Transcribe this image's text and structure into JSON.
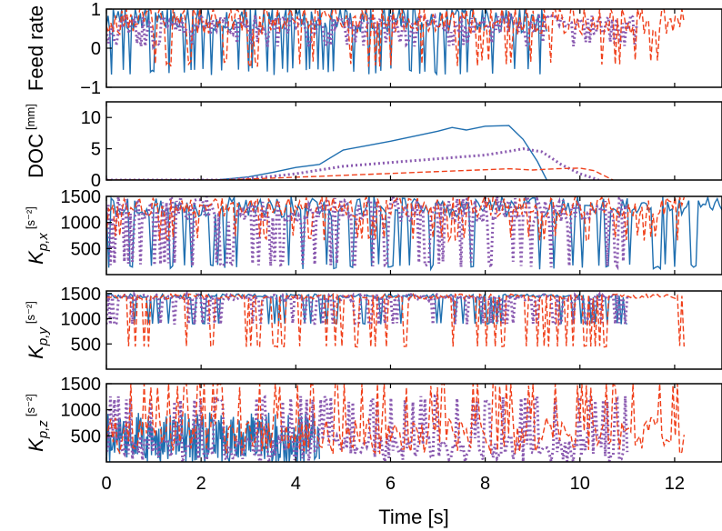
{
  "chart_data": {
    "type": "line",
    "layout": "5 vertically stacked panels sharing the x axis",
    "xlabel": "Time [s]",
    "xlim": [
      0,
      13
    ],
    "xticks": [
      0,
      2,
      4,
      6,
      8,
      10,
      12
    ],
    "grid": false,
    "legend": "none",
    "series_styles": [
      {
        "color": "#1f6fb0",
        "dash": "solid"
      },
      {
        "color": "#8a5ab0",
        "dash": "dotted"
      },
      {
        "color": "#f0401b",
        "dash": "dashed"
      }
    ],
    "panels": [
      {
        "id": "feed",
        "ylabel": "Feed rate",
        "ylabel_unit": "",
        "ylim": [
          -1,
          1
        ],
        "yticks": [
          -1,
          0,
          1
        ],
        "series": [
          {
            "style": 0,
            "x_range": [
              0,
              9.3
            ],
            "kind": "noisy",
            "base": 0.75,
            "spread": 0.35,
            "spike_to": -0.6
          },
          {
            "style": 1,
            "x_range": [
              0,
              11.2
            ],
            "kind": "noisy",
            "base": 0.6,
            "spread": 0.25,
            "spike_to": 0.1
          },
          {
            "style": 2,
            "x_range": [
              0,
              12.2
            ],
            "kind": "noisy",
            "base": 0.75,
            "spread": 0.4,
            "spike_to": -0.4
          }
        ]
      },
      {
        "id": "doc",
        "ylabel": "DOC",
        "ylabel_unit": "[mm]",
        "ylim": [
          0,
          12.5
        ],
        "yticks": [
          0,
          5,
          10
        ],
        "series": [
          {
            "style": 0,
            "x": [
              0,
              2.3,
              3.0,
              3.5,
              4.0,
              4.5,
              5.0,
              5.5,
              6.0,
              6.5,
              7.0,
              7.3,
              7.6,
              8.0,
              8.5,
              8.8,
              9.1,
              9.3
            ],
            "y": [
              0,
              0,
              0.5,
              1.2,
              2.0,
              2.5,
              4.8,
              5.5,
              6.2,
              7.0,
              7.8,
              8.4,
              8.0,
              8.6,
              8.7,
              6.5,
              3.0,
              0
            ]
          },
          {
            "style": 1,
            "x": [
              0,
              2.5,
              3.5,
              4.0,
              5.0,
              6.0,
              7.0,
              7.5,
              8.0,
              8.5,
              8.8,
              9.2,
              9.6,
              10.0,
              10.4
            ],
            "y": [
              0,
              0,
              0.6,
              1.0,
              2.2,
              2.8,
              3.4,
              3.7,
              4.0,
              4.6,
              5.0,
              4.5,
              2.5,
              1.0,
              0
            ]
          },
          {
            "style": 2,
            "x": [
              0,
              2.4,
              3.5,
              4.5,
              5.5,
              6.5,
              7.5,
              8.5,
              9.0,
              9.5,
              10.0,
              10.3,
              10.7
            ],
            "y": [
              0,
              0,
              0.3,
              0.6,
              0.9,
              1.2,
              1.5,
              1.8,
              1.6,
              1.8,
              1.9,
              1.5,
              0
            ]
          }
        ]
      },
      {
        "id": "kpx",
        "ylabel": "K",
        "ylabel_sub": "p,x",
        "ylabel_unit": "[s⁻²]",
        "ylim": [
          0,
          1500
        ],
        "yticks": [
          500,
          1000,
          1500
        ],
        "series": [
          {
            "style": 0,
            "x_range": [
              0,
              13
            ],
            "kind": "noisy",
            "base": 1300,
            "spread": 200,
            "spike_to": 150
          },
          {
            "style": 1,
            "x_range": [
              0,
              11.0
            ],
            "kind": "noisy",
            "base": 1250,
            "spread": 250,
            "spike_to": 200
          },
          {
            "style": 2,
            "x_range": [
              0,
              12.2
            ],
            "kind": "noisy",
            "base": 1300,
            "spread": 200,
            "spike_to": 700
          }
        ]
      },
      {
        "id": "kpy",
        "ylabel": "K",
        "ylabel_sub": "p,y",
        "ylabel_unit": "[s⁻²]",
        "ylim": [
          0,
          1550
        ],
        "yticks": [
          500,
          1000,
          1500
        ],
        "series": [
          {
            "style": 0,
            "x_range": [
              0,
              11.0
            ],
            "kind": "noisy",
            "base": 1450,
            "spread": 40,
            "spike_to": 900
          },
          {
            "style": 1,
            "x_range": [
              0,
              11.0
            ],
            "kind": "noisy",
            "base": 1420,
            "spread": 60,
            "spike_to": 900
          },
          {
            "style": 2,
            "x_range": [
              0,
              12.2
            ],
            "kind": "noisy",
            "base": 1440,
            "spread": 50,
            "spike_to": 450
          }
        ]
      },
      {
        "id": "kpz",
        "ylabel": "K",
        "ylabel_sub": "p,z",
        "ylabel_unit": "[s⁻²]",
        "ylim": [
          0,
          1500
        ],
        "yticks": [
          500,
          1000,
          1500
        ],
        "series": [
          {
            "style": 0,
            "x_range": [
              0,
              4.5
            ],
            "kind": "noisy",
            "base": 500,
            "spread": 450,
            "spike_to": 50
          },
          {
            "style": 1,
            "x_range": [
              0,
              11.0
            ],
            "kind": "noisy",
            "base": 250,
            "spread": 250,
            "spike_to": 1200
          },
          {
            "style": 2,
            "x_range": [
              0,
              12.2
            ],
            "kind": "noisy",
            "base": 500,
            "spread": 350,
            "spike_to": 1500
          }
        ]
      }
    ]
  }
}
